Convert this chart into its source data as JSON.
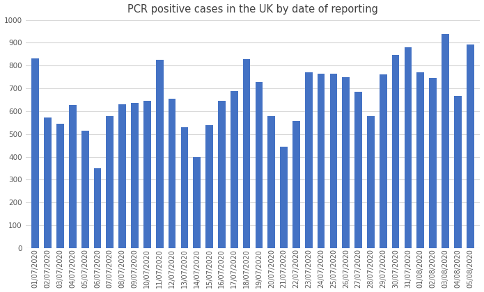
{
  "title": "PCR positive cases in the UK by date of reporting",
  "bar_color": "#4472C4",
  "background_color": "#FFFFFF",
  "grid_color": "#D9D9D9",
  "ylim": [
    0,
    1000
  ],
  "yticks": [
    0,
    100,
    200,
    300,
    400,
    500,
    600,
    700,
    800,
    900,
    1000
  ],
  "categories": [
    "01/07/2020",
    "02/07/2020",
    "03/07/2020",
    "04/07/2020",
    "05/07/2020",
    "06/07/2020",
    "07/07/2020",
    "08/07/2020",
    "09/07/2020",
    "10/07/2020",
    "11/07/2020",
    "12/07/2020",
    "13/07/2020",
    "14/07/2020",
    "15/07/2020",
    "16/07/2020",
    "17/07/2020",
    "18/07/2020",
    "19/07/2020",
    "20/07/2020",
    "21/07/2020",
    "22/07/2020",
    "23/07/2020",
    "24/07/2020",
    "25/07/2020",
    "26/07/2020",
    "27/07/2020",
    "28/07/2020",
    "29/07/2020",
    "30/07/2020",
    "31/07/2020",
    "01/08/2020",
    "02/08/2020",
    "03/08/2020",
    "04/08/2020",
    "05/08/2020"
  ],
  "values": [
    830,
    572,
    545,
    628,
    515,
    350,
    578,
    630,
    635,
    645,
    825,
    655,
    530,
    400,
    540,
    645,
    688,
    828,
    727,
    578,
    445,
    558,
    770,
    765,
    765,
    750,
    685,
    578,
    760,
    848,
    880,
    770,
    745,
    938,
    668,
    893
  ],
  "title_fontsize": 10.5,
  "tick_fontsize": 7,
  "ytick_fontsize": 7.5
}
